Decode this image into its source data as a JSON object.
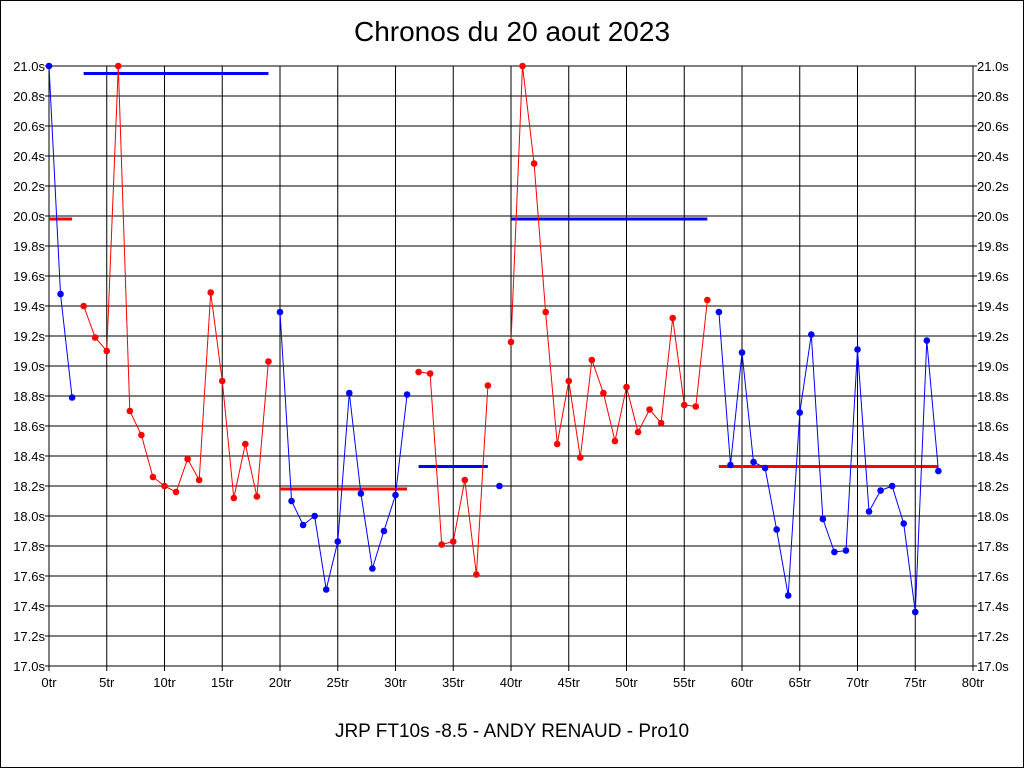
{
  "title": "Chronos du 20 aout 2023",
  "footer": "JRP FT10s -8.5 - ANDY RENAUD - Pro10",
  "colors": {
    "red": "#ff0000",
    "blue": "#0000ff",
    "grid": "#000000",
    "background": "#ffffff"
  },
  "chart_data": {
    "type": "line",
    "title": "Chronos du 20 aout 2023",
    "xlabel": "",
    "ylabel": "",
    "xlim": [
      0,
      80
    ],
    "ylim": [
      17.0,
      21.0
    ],
    "grid": true,
    "x_ticks": [
      "0tr",
      "5tr",
      "10tr",
      "15tr",
      "20tr",
      "25tr",
      "30tr",
      "35tr",
      "40tr",
      "45tr",
      "50tr",
      "55tr",
      "60tr",
      "65tr",
      "70tr",
      "75tr",
      "80tr"
    ],
    "y_ticks": [
      "17.0s",
      "17.2s",
      "17.4s",
      "17.6s",
      "17.8s",
      "18.0s",
      "18.2s",
      "18.4s",
      "18.6s",
      "18.8s",
      "19.0s",
      "19.2s",
      "19.4s",
      "19.6s",
      "19.8s",
      "20.0s",
      "20.2s",
      "20.4s",
      "20.6s",
      "20.8s",
      "21.0s"
    ],
    "series": [
      {
        "color": "#0000ff",
        "x": [
          0,
          1,
          2
        ],
        "y": [
          21.0,
          19.48,
          18.79
        ]
      },
      {
        "color": "#ff0000",
        "x": [
          3,
          4,
          5,
          6,
          7,
          8,
          9,
          10,
          11,
          12,
          13,
          14,
          15,
          16,
          17,
          18,
          19
        ],
        "y": [
          19.4,
          19.19,
          19.1,
          21.0,
          18.7,
          18.54,
          18.26,
          18.2,
          18.16,
          18.38,
          18.24,
          19.49,
          18.9,
          18.12,
          18.48,
          18.13,
          19.03
        ]
      },
      {
        "color": "#0000ff",
        "x": [
          20,
          21,
          22,
          23,
          24,
          25,
          26,
          27,
          28,
          29,
          30,
          31
        ],
        "y": [
          19.36,
          18.1,
          17.94,
          18.0,
          17.51,
          17.83,
          18.82,
          18.15,
          17.65,
          17.9,
          18.14,
          18.81
        ]
      },
      {
        "color": "#ff0000",
        "x": [
          32,
          33,
          34,
          35,
          36,
          37,
          38
        ],
        "y": [
          18.96,
          18.95,
          17.81,
          17.83,
          18.24,
          17.61,
          18.87
        ]
      },
      {
        "color": "#0000ff",
        "x": [
          39
        ],
        "y": [
          18.2
        ]
      },
      {
        "color": "#ff0000",
        "x": [
          40,
          41,
          42,
          43,
          44,
          45,
          46,
          47,
          48,
          49,
          50,
          51,
          52,
          53,
          54,
          55,
          56,
          57
        ],
        "y": [
          19.16,
          21.0,
          20.35,
          19.36,
          18.48,
          18.9,
          18.39,
          19.04,
          18.82,
          18.5,
          18.86,
          18.56,
          18.71,
          18.62,
          19.32,
          18.74,
          18.73,
          19.44
        ]
      },
      {
        "color": "#0000ff",
        "x": [
          58,
          59,
          60,
          61,
          62,
          63,
          64,
          65,
          66,
          67,
          68,
          69,
          70,
          71,
          72,
          73,
          74,
          75,
          76,
          77
        ],
        "y": [
          19.36,
          18.34,
          19.09,
          18.36,
          18.32,
          17.91,
          17.47,
          18.69,
          19.21,
          17.98,
          17.76,
          17.77,
          19.11,
          18.03,
          18.17,
          18.2,
          17.95,
          17.36,
          19.17,
          18.3
        ]
      }
    ],
    "averages": [
      {
        "color": "#ff0000",
        "x_from": 0,
        "x_to": 2,
        "y": 19.98
      },
      {
        "color": "#0000ff",
        "x_from": 3,
        "x_to": 19,
        "y": 20.95
      },
      {
        "color": "#ff0000",
        "x_from": 20,
        "x_to": 31,
        "y": 18.18
      },
      {
        "color": "#0000ff",
        "x_from": 32,
        "x_to": 38,
        "y": 18.33
      },
      {
        "color": "#0000ff",
        "x_from": 40,
        "x_to": 57,
        "y": 19.98
      },
      {
        "color": "#ff0000",
        "x_from": 58,
        "x_to": 77,
        "y": 18.33
      }
    ]
  }
}
